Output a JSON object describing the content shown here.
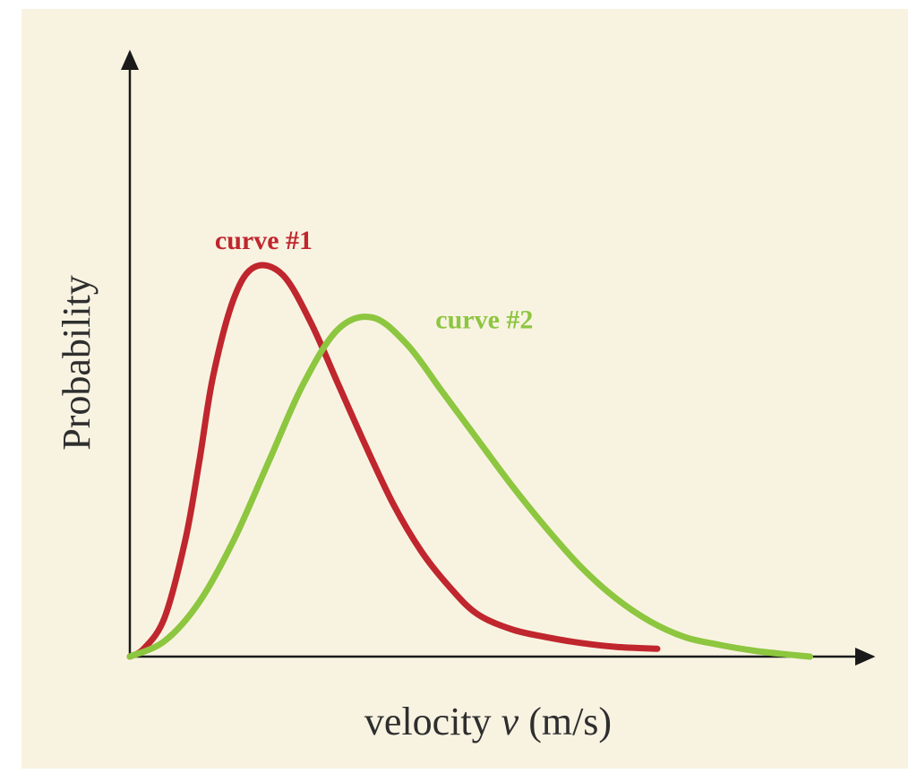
{
  "chart_data": {
    "type": "line",
    "title": "",
    "xlabel": "velocity ",
    "xlabel_symbol": "v",
    "xlabel_unit": " (m/s)",
    "ylabel": "Probability",
    "grid": false,
    "legend": "inline labels near curves",
    "xlim": [
      0,
      1
    ],
    "ylim": [
      0,
      1
    ],
    "background_color": "#f8f3e1",
    "axis_color": "#1a1a1a",
    "series": [
      {
        "name": "curve #1",
        "color": "#c0262d",
        "x": [
          0,
          0.02,
          0.05,
          0.08,
          0.1,
          0.12,
          0.15,
          0.18,
          0.22,
          0.26,
          0.3,
          0.34,
          0.38,
          0.42,
          0.46,
          0.5,
          0.55,
          0.6,
          0.65,
          0.7,
          0.76
        ],
        "y": [
          0,
          0.02,
          0.1,
          0.3,
          0.5,
          0.72,
          0.92,
          1.0,
          0.98,
          0.86,
          0.7,
          0.54,
          0.39,
          0.27,
          0.18,
          0.11,
          0.07,
          0.05,
          0.035,
          0.025,
          0.02
        ]
      },
      {
        "name": "curve #2",
        "color": "#8dc63f",
        "x": [
          0,
          0.05,
          0.1,
          0.15,
          0.2,
          0.25,
          0.3,
          0.35,
          0.4,
          0.45,
          0.5,
          0.55,
          0.6,
          0.65,
          0.7,
          0.75,
          0.8,
          0.85,
          0.9,
          0.95,
          0.98
        ],
        "y": [
          0,
          0.04,
          0.14,
          0.3,
          0.5,
          0.7,
          0.84,
          0.87,
          0.8,
          0.68,
          0.56,
          0.44,
          0.33,
          0.23,
          0.15,
          0.09,
          0.05,
          0.03,
          0.015,
          0.005,
          0.0
        ]
      }
    ]
  }
}
